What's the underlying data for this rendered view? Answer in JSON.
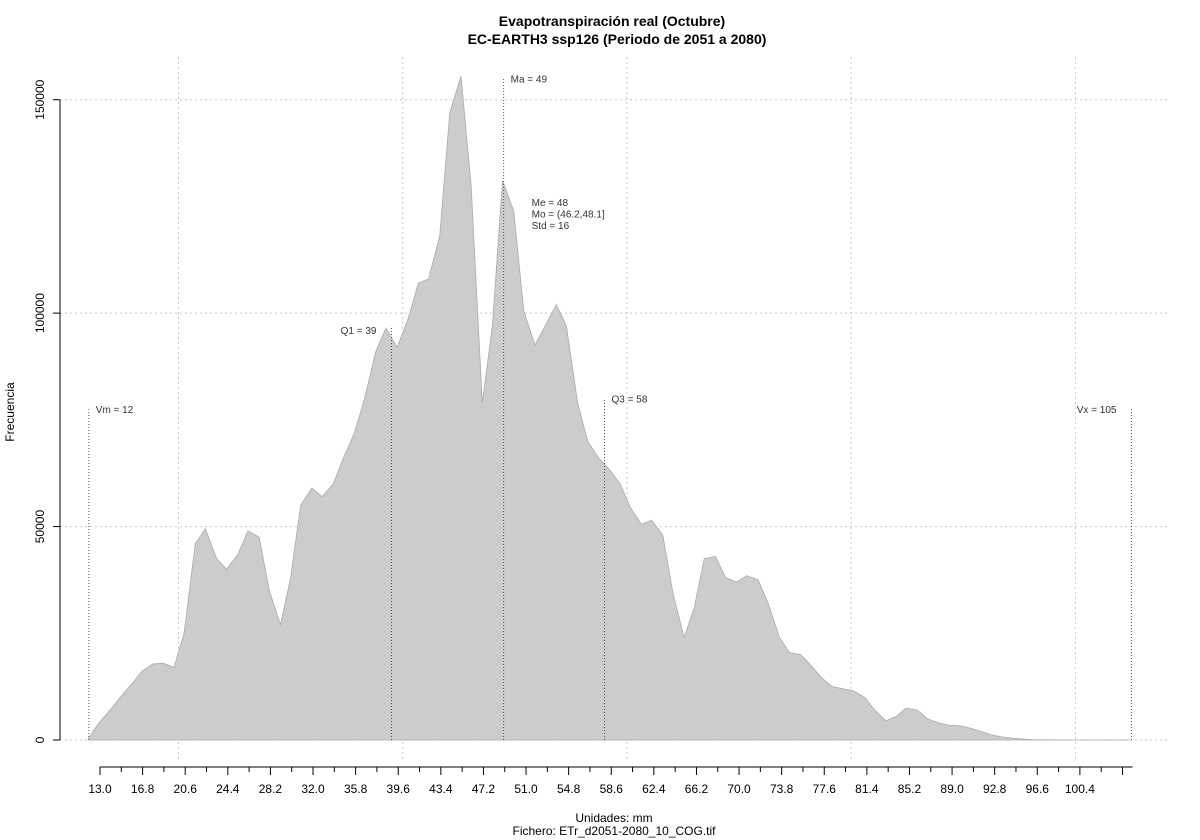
{
  "chart_data": {
    "type": "area",
    "title": "Evapotranspiración real (Octubre)",
    "subtitle": "EC-EARTH3 ssp126 (Periodo de 2051 a 2080)",
    "xlabel": "Unidades: mm",
    "caption": "Fichero: ETr_d2051-2080_10_COG.tif",
    "ylabel": "Frecuencia",
    "fill_color": "#cccccc",
    "stroke_color": "#aaaaaa",
    "grid": true,
    "xlim": [
      13.0,
      107.1
    ],
    "ylim": [
      0,
      160000
    ],
    "x_ticks": [
      "13.0",
      "16.8",
      "20.6",
      "24.4",
      "28.2",
      "32.0",
      "35.8",
      "39.6",
      "43.4",
      "47.2",
      "51.0",
      "54.8",
      "58.6",
      "62.4",
      "66.2",
      "70.0",
      "73.8",
      "77.6",
      "81.4",
      "85.2",
      "89.0",
      "92.8",
      "96.6",
      "100.4"
    ],
    "y_ticks": [
      0,
      50000,
      100000,
      150000
    ],
    "y_tick_labels": [
      "0",
      "50000",
      "100000",
      "150000"
    ],
    "x": [
      12.0,
      12.9,
      13.9,
      14.8,
      15.8,
      16.7,
      17.7,
      18.6,
      19.6,
      20.5,
      21.5,
      22.4,
      23.4,
      24.3,
      25.3,
      26.2,
      27.2,
      28.1,
      29.1,
      30.0,
      30.9,
      31.9,
      32.8,
      33.8,
      34.7,
      35.7,
      36.6,
      37.6,
      38.5,
      39.5,
      40.4,
      41.4,
      42.3,
      43.3,
      44.2,
      45.2,
      46.1,
      47.1,
      48.0,
      48.9,
      49.9,
      50.8,
      51.8,
      52.7,
      53.7,
      54.6,
      55.6,
      56.5,
      57.5,
      58.4,
      59.4,
      60.3,
      61.3,
      62.2,
      63.2,
      64.1,
      65.1,
      66.0,
      66.9,
      67.9,
      68.8,
      69.8,
      70.7,
      71.7,
      72.6,
      73.6,
      74.5,
      75.5,
      76.4,
      77.4,
      78.3,
      79.3,
      80.2,
      81.2,
      82.1,
      83.1,
      84.0,
      84.9,
      85.9,
      86.8,
      87.8,
      88.7,
      89.7,
      90.6,
      91.6,
      92.5,
      93.5,
      94.4,
      95.4,
      96.3,
      97.3,
      98.2,
      99.2,
      100.1,
      101.1,
      102.0,
      103.0,
      103.9,
      104.9,
      105.0
    ],
    "values": [
      500,
      4000,
      7000,
      10000,
      13000,
      16000,
      17800,
      18000,
      17000,
      25000,
      46000,
      49500,
      42500,
      40000,
      43500,
      49000,
      47500,
      35000,
      27000,
      38000,
      55000,
      59000,
      57000,
      60000,
      66000,
      72000,
      80000,
      91000,
      96500,
      92000,
      98000,
      107000,
      108000,
      118000,
      147000,
      155500,
      130000,
      79000,
      97000,
      131000,
      124000,
      100500,
      92500,
      97000,
      102000,
      97000,
      79000,
      70000,
      66000,
      63500,
      60000,
      54500,
      50500,
      51500,
      48000,
      34500,
      24000,
      31000,
      42500,
      43000,
      38000,
      37000,
      38500,
      37500,
      32000,
      24000,
      20500,
      20000,
      17500,
      14500,
      12500,
      12000,
      11500,
      10000,
      7000,
      4500,
      5500,
      7500,
      7000,
      5000,
      4000,
      3500,
      3300,
      2800,
      2000,
      1200,
      700,
      400,
      200,
      100,
      50,
      20,
      0,
      0,
      0,
      0,
      0,
      0,
      0,
      0
    ],
    "markers": [
      {
        "label": "Vm = 12",
        "x": 12,
        "line_to": 77500,
        "label_y": 77500,
        "side": "right"
      },
      {
        "label": "Q1 = 39",
        "x": 39,
        "line_to": 97000,
        "label_y": 96000,
        "side": "left"
      },
      {
        "label": "Ma = 49",
        "x": 49,
        "line_to": 155000,
        "label_y": 155000,
        "side": "right"
      },
      {
        "label": "Q3 = 58",
        "x": 58,
        "line_to": 80000,
        "label_y": 80000,
        "side": "right"
      },
      {
        "label": "Vx = 105",
        "x": 105,
        "line_to": 77500,
        "label_y": 77500,
        "side": "left"
      }
    ],
    "stats_block": [
      "Me = 48",
      "Mo = (46.2,48.1]",
      "Std = 16"
    ]
  }
}
